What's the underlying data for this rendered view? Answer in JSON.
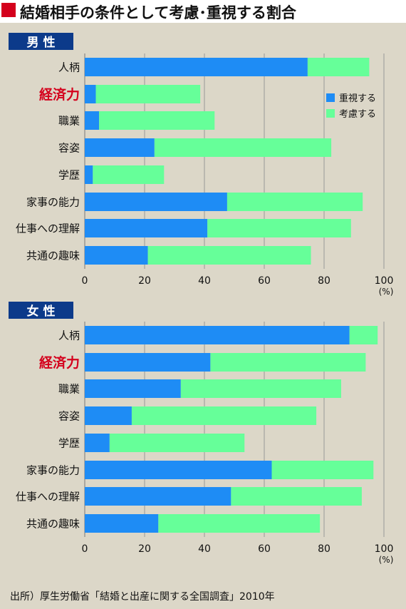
{
  "header": {
    "title": "結婚相手の条件として考慮･重視する割合"
  },
  "footer": {
    "source": "出所）厚生労働省「結婚と出産に関する全国調査」2010年"
  },
  "colors": {
    "heavy": "#1e8cf5",
    "consider": "#66ff99",
    "accent": "#d4001c",
    "badge": "#0c3a8a",
    "grid": "#999999"
  },
  "chart_data": [
    {
      "type": "bar",
      "orientation": "horizontal",
      "stacked": true,
      "title": "男 性",
      "categories": [
        "人柄",
        "経済力",
        "職業",
        "容姿",
        "学歴",
        "家事の能力",
        "仕事への理解",
        "共通の趣味"
      ],
      "highlight_category": "経済力",
      "series": [
        {
          "name": "重視する",
          "color": "#1e8cf5",
          "values": [
            74.5,
            3.7,
            4.8,
            23.3,
            2.7,
            47.6,
            41.0,
            21.1
          ]
        },
        {
          "name": "考慮する",
          "color": "#66ff99",
          "values": [
            20.6,
            34.9,
            38.6,
            59.1,
            23.8,
            45.3,
            48.0,
            54.5
          ]
        }
      ],
      "xlim": [
        0,
        100
      ],
      "xticks": [
        0,
        20,
        40,
        60,
        80,
        100
      ],
      "unit": "(%)",
      "grid": true,
      "legend": "top-right"
    },
    {
      "type": "bar",
      "orientation": "horizontal",
      "stacked": true,
      "title": "女 性",
      "categories": [
        "人柄",
        "経済力",
        "職業",
        "容姿",
        "学歴",
        "家事の能力",
        "仕事への理解",
        "共通の趣味"
      ],
      "highlight_category": "経済力",
      "series": [
        {
          "name": "重視する",
          "color": "#1e8cf5",
          "values": [
            88.5,
            42.0,
            32.1,
            15.7,
            8.3,
            62.5,
            48.9,
            24.6
          ]
        },
        {
          "name": "考慮する",
          "color": "#66ff99",
          "values": [
            9.4,
            51.9,
            53.6,
            61.7,
            45.1,
            34.0,
            43.7,
            54.0
          ]
        }
      ],
      "xlim": [
        0,
        100
      ],
      "xticks": [
        0,
        20,
        40,
        60,
        80,
        100
      ],
      "unit": "(%)",
      "grid": true
    }
  ]
}
